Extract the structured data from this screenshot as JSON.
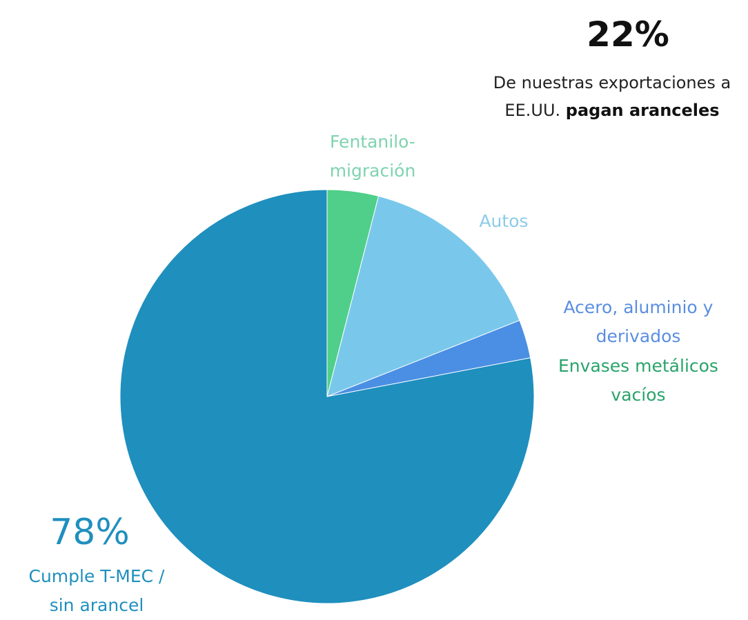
{
  "chart_data": {
    "type": "pie",
    "categories": [
      "Fentanilo-migración",
      "Autos",
      "Acero, aluminio y derivados",
      "Cumple T-MEC / sin arancel"
    ],
    "values": [
      4,
      15,
      3,
      78
    ],
    "value_labels": [
      null,
      null,
      null,
      "78%"
    ],
    "colors": [
      "#4fcf8a",
      "#79c8ec",
      "#4a8fe3",
      "#1f8fbe"
    ],
    "extra_label": "Envases metálicos vacíos",
    "annotation": {
      "text": "22%",
      "caption": [
        "De nuestras exportaciones a EE.UU.",
        "pagan aranceles"
      ]
    }
  }
}
